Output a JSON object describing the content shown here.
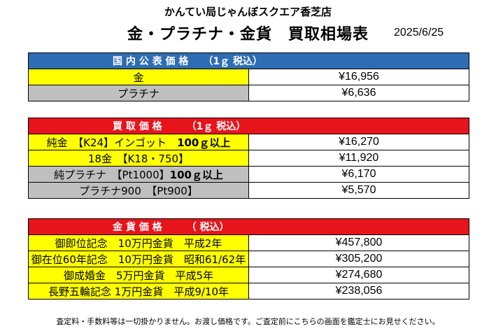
{
  "store_name": "かんてい局じゃんぼスクエア香芝店",
  "title": "金・プラチナ・金貨　買取相場表",
  "date": "2025/6/25",
  "public_price": {
    "header": "国 内 公 表 価 格　　（1ｇ 税込）",
    "rows": [
      {
        "label": "金",
        "value": "¥16,956"
      },
      {
        "label": "プラチナ",
        "value": "¥6,636"
      }
    ]
  },
  "buy_price": {
    "header": "買 取 価 格　　　（1ｇ 税込）",
    "rows": [
      {
        "label": "純金　【K24】インゴット　",
        "label_bold": "100ｇ以上",
        "value": "¥16,270"
      },
      {
        "label": "18金　【K18・750】",
        "label_bold": "",
        "value": "¥11,920"
      },
      {
        "label": "純プラチナ　【Pt1000】",
        "label_bold": "100ｇ以上",
        "value": "¥6,170"
      },
      {
        "label": "プラチナ900　【Pt900】",
        "label_bold": "",
        "value": "¥5,570"
      }
    ]
  },
  "coin_price": {
    "header": "金 貨 価 格　　　（ 税込）",
    "rows": [
      {
        "label": "御即位記念　10万円金貨　平成2年",
        "value": "¥457,800"
      },
      {
        "label": "御在位60年記念　10万円金貨　昭和61/62年",
        "value": "¥305,200"
      },
      {
        "label": "御成婚金　5万円金貨　平成5年",
        "value": "¥274,680"
      },
      {
        "label": "長野五輪記念 1万円金貨　平成9/10年",
        "value": "¥238,056"
      }
    ]
  },
  "footer_note": "査定料・手数料等は一切掛かりません。お渡し価格です。ご査定前にこちらの画面を鑑定士にお見せください。",
  "colors": {
    "blue_header": "#2e6db4",
    "red_header": "#e8141c",
    "yellow_row": "#ffff00",
    "gray_row": "#bfbfbf"
  }
}
